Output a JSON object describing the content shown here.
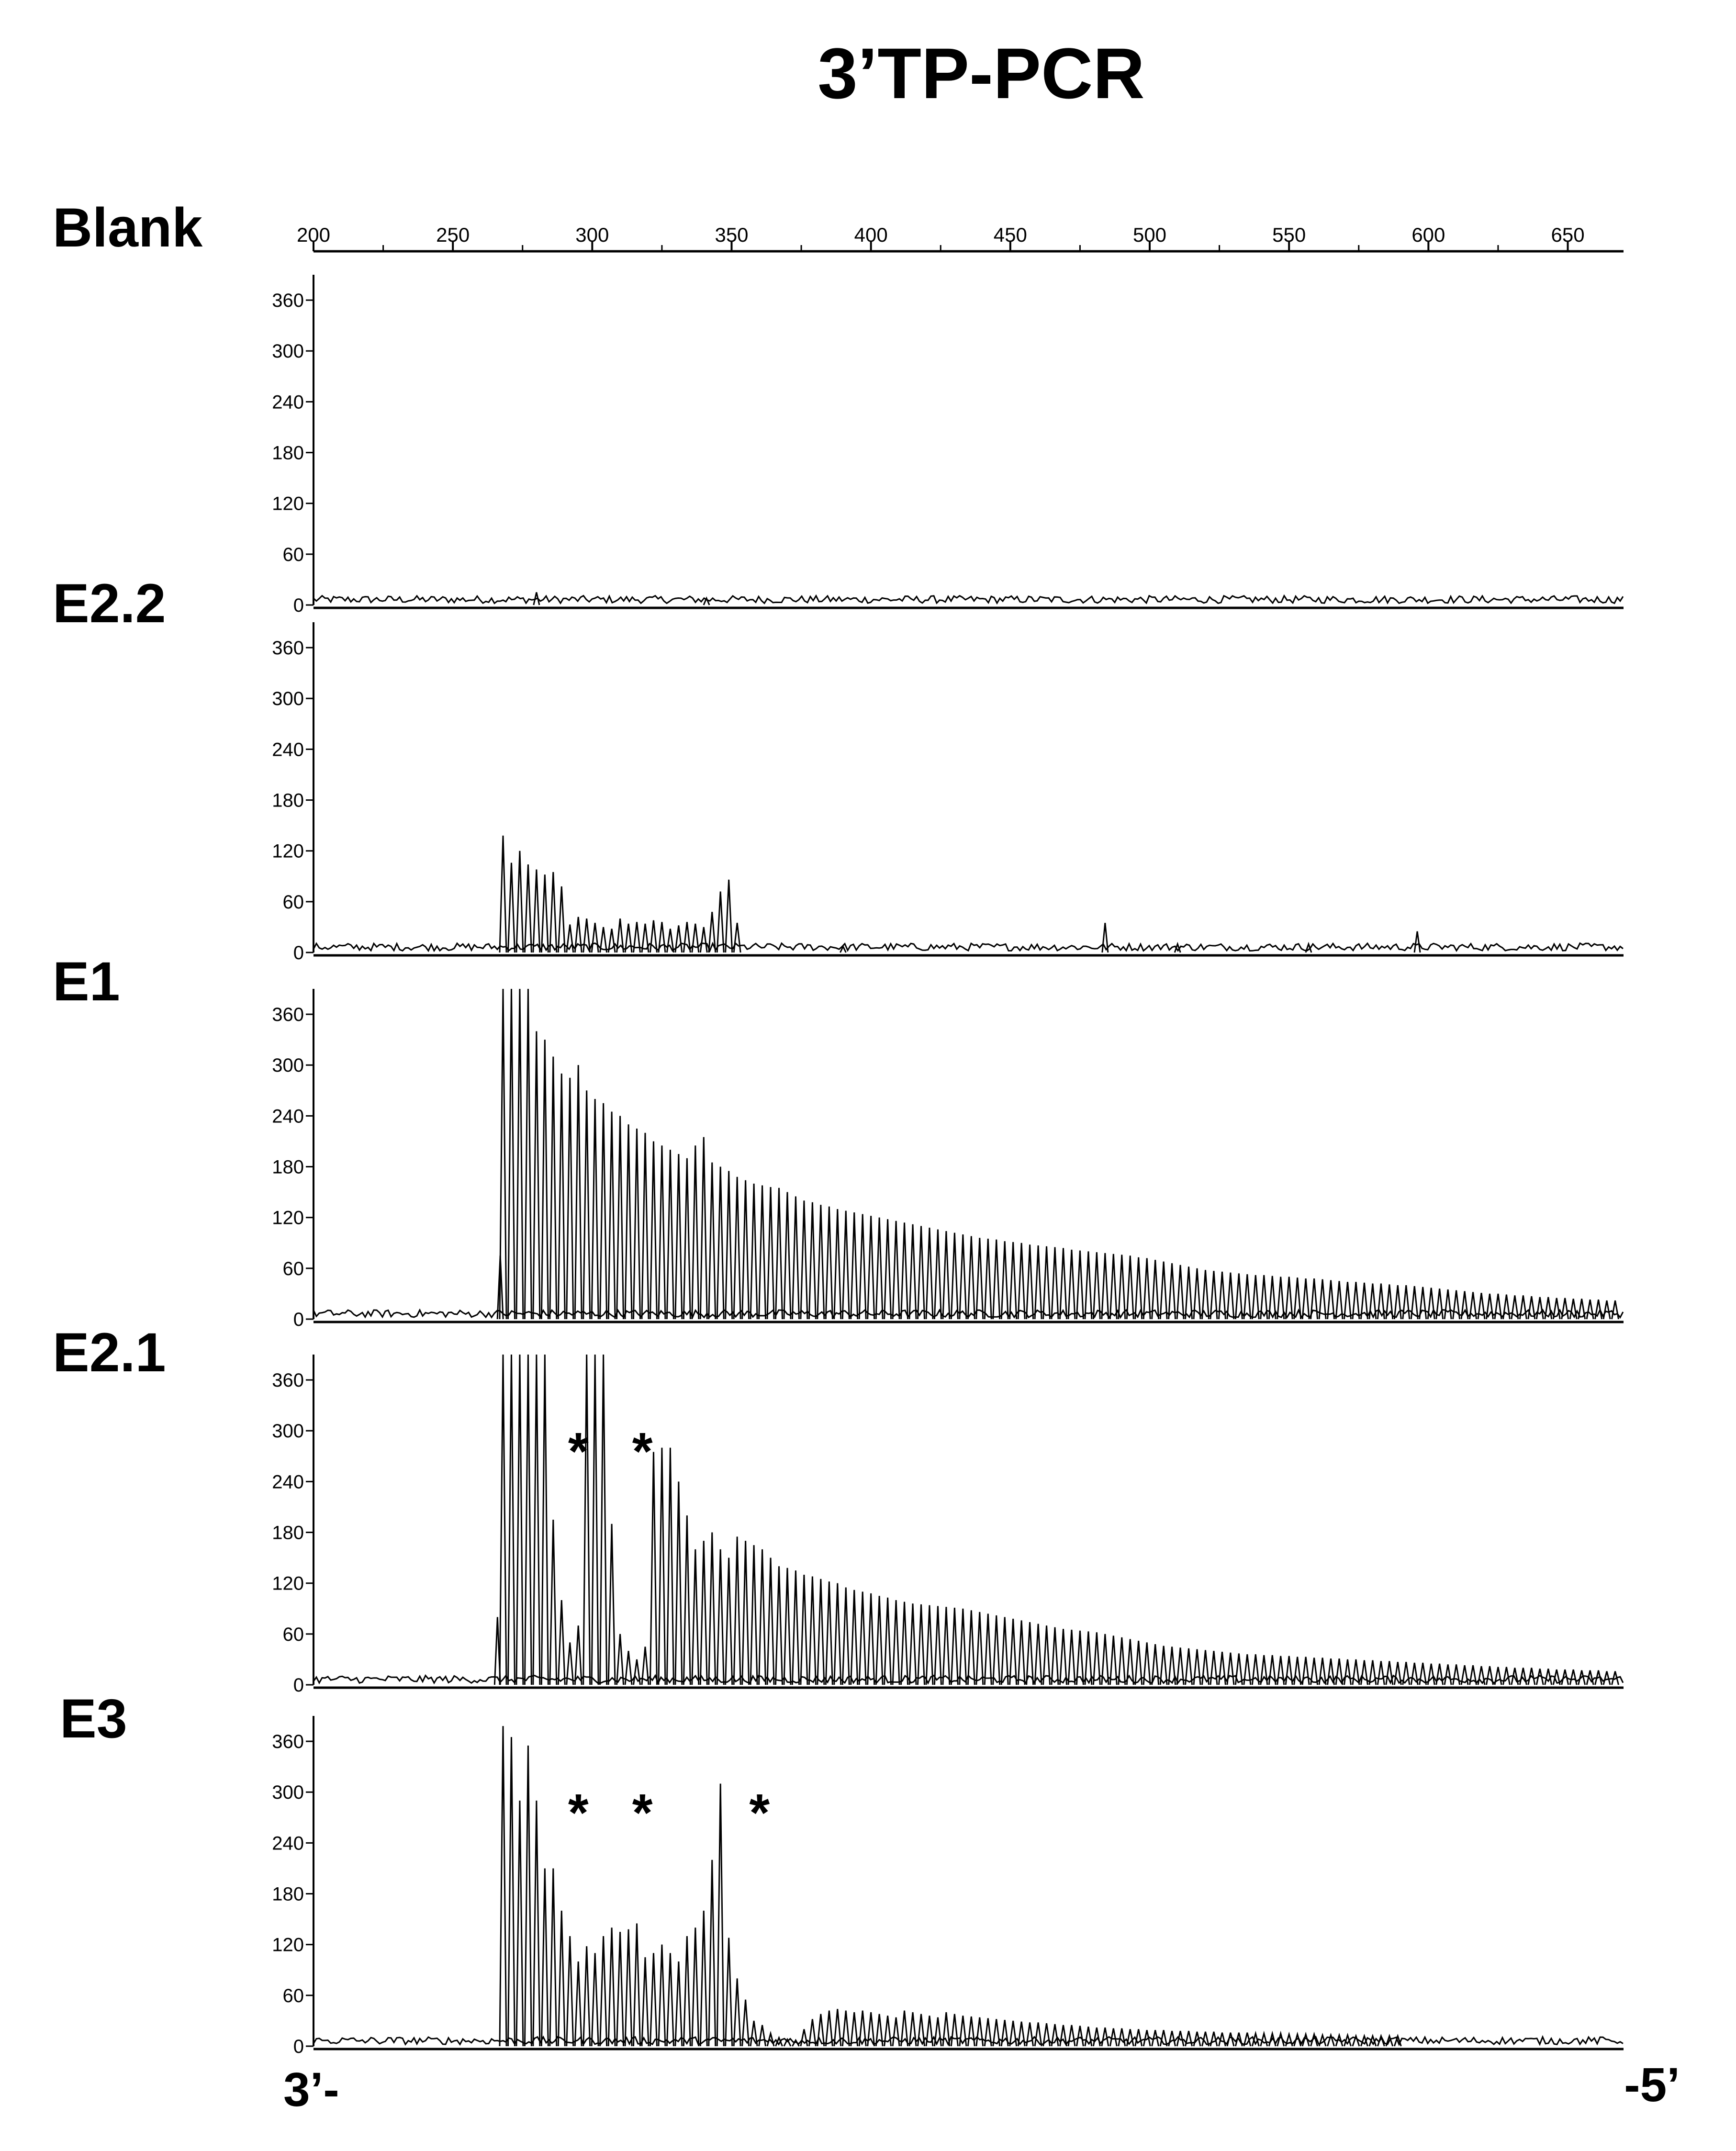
{
  "chart_data": {
    "type": "line",
    "title": "3’TP-PCR",
    "x_ticks": [
      200,
      250,
      300,
      350,
      400,
      450,
      500,
      550,
      600,
      650
    ],
    "xlim": [
      200,
      670
    ],
    "y_ticks": [
      0,
      60,
      120,
      180,
      240,
      300,
      360
    ],
    "ylim": [
      0,
      390
    ],
    "grid": false,
    "legend": "none",
    "trace_color": "#000000",
    "direction_labels": {
      "left": "3’-",
      "right": "-5’"
    },
    "annotation_marker": "*",
    "series": [
      {
        "name": "Blank",
        "start": 268,
        "step": 3,
        "count": 0,
        "heights": [],
        "extra_peaks": [
          {
            "x": 280,
            "y": 15
          },
          {
            "x": 341,
            "y": 8
          }
        ],
        "asterisks": []
      },
      {
        "name": "E2.2",
        "start": 268,
        "step": 3,
        "count": 29,
        "heights": [
          138,
          106,
          120,
          104,
          98,
          92,
          95,
          78,
          33,
          42,
          40,
          35,
          30,
          28,
          40,
          34,
          36,
          34,
          38,
          36,
          28,
          32,
          36,
          34,
          30,
          48,
          72,
          86,
          35
        ],
        "extra_peaks": [
          {
            "x": 484,
            "y": 35
          },
          {
            "x": 596,
            "y": 25
          },
          {
            "x": 557,
            "y": 10
          },
          {
            "x": 510,
            "y": 10
          },
          {
            "x": 390,
            "y": 7
          }
        ],
        "asterisks": []
      },
      {
        "name": "E1",
        "start": 268,
        "step": 3,
        "count": 134,
        "heights": [
          390,
          390,
          390,
          390,
          340,
          330,
          310,
          290,
          285,
          300,
          270,
          260,
          255,
          245,
          240,
          230,
          225,
          220,
          210,
          205,
          200,
          195,
          190,
          205,
          215,
          185,
          180,
          175,
          168,
          164,
          160,
          158,
          156,
          155,
          150,
          145,
          140,
          138,
          135,
          133,
          130,
          128,
          126,
          124,
          122,
          120,
          118,
          116,
          114,
          112,
          110,
          108,
          106,
          104,
          102,
          100,
          98,
          96,
          95,
          94,
          92,
          91,
          90,
          88,
          87,
          86,
          85,
          84,
          82,
          81,
          80,
          79,
          78,
          77,
          76,
          75,
          73,
          72,
          70,
          68,
          66,
          64,
          62,
          60,
          58,
          57,
          56,
          55,
          54,
          53,
          52,
          52,
          51,
          50,
          50,
          49,
          48,
          48,
          47,
          46,
          45,
          44,
          44,
          43,
          42,
          42,
          41,
          40,
          40,
          39,
          38,
          37,
          36,
          35,
          34,
          33,
          32,
          31,
          30,
          30,
          29,
          28,
          28,
          27,
          26,
          26,
          25,
          25,
          24,
          24,
          23,
          23,
          22,
          22
        ],
        "extra_peaks": [
          {
            "x": 267,
            "y": 75
          }
        ],
        "asterisks": []
      },
      {
        "name": "E2.1",
        "start": 268,
        "step": 3,
        "count": 134,
        "heights": [
          390,
          390,
          390,
          390,
          390,
          390,
          195,
          100,
          50,
          70,
          390,
          390,
          390,
          190,
          60,
          40,
          30,
          45,
          275,
          280,
          280,
          240,
          200,
          160,
          170,
          180,
          160,
          150,
          175,
          170,
          165,
          160,
          150,
          140,
          138,
          135,
          130,
          128,
          125,
          122,
          120,
          115,
          112,
          110,
          108,
          105,
          103,
          100,
          98,
          96,
          95,
          94,
          93,
          92,
          91,
          90,
          88,
          86,
          84,
          82,
          80,
          78,
          76,
          74,
          72,
          70,
          68,
          66,
          65,
          64,
          63,
          62,
          60,
          58,
          56,
          54,
          52,
          50,
          48,
          46,
          45,
          44,
          43,
          42,
          41,
          40,
          39,
          38,
          37,
          36,
          36,
          35,
          35,
          34,
          34,
          33,
          33,
          32,
          32,
          31,
          31,
          30,
          30,
          29,
          29,
          28,
          28,
          27,
          27,
          26,
          26,
          25,
          25,
          24,
          24,
          23,
          23,
          22,
          22,
          21,
          21,
          20,
          20,
          20,
          19,
          19,
          18,
          18,
          18,
          17,
          17,
          17,
          16,
          16
        ],
        "extra_peaks": [
          {
            "x": 266,
            "y": 80
          }
        ],
        "asterisks": [
          295,
          318
        ]
      },
      {
        "name": "E3",
        "start": 268,
        "step": 3,
        "count": 108,
        "heights": [
          378,
          365,
          290,
          355,
          290,
          210,
          210,
          160,
          130,
          100,
          118,
          110,
          130,
          140,
          135,
          138,
          145,
          105,
          110,
          120,
          110,
          100,
          130,
          140,
          160,
          220,
          310,
          128,
          80,
          55,
          30,
          25,
          15,
          10,
          8,
          7,
          20,
          32,
          38,
          42,
          44,
          42,
          40,
          42,
          40,
          38,
          36,
          34,
          42,
          40,
          38,
          36,
          34,
          40,
          38,
          36,
          35,
          34,
          33,
          32,
          31,
          30,
          29,
          28,
          28,
          27,
          26,
          25,
          25,
          24,
          23,
          22,
          22,
          21,
          21,
          20,
          20,
          19,
          19,
          19,
          18,
          18,
          18,
          17,
          17,
          17,
          16,
          16,
          16,
          16,
          15,
          15,
          15,
          15,
          14,
          14,
          14,
          14,
          13,
          13,
          13,
          13,
          12,
          12,
          12,
          12,
          12,
          12
        ],
        "extra_peaks": [],
        "asterisks": [
          295,
          318,
          360
        ]
      }
    ]
  }
}
